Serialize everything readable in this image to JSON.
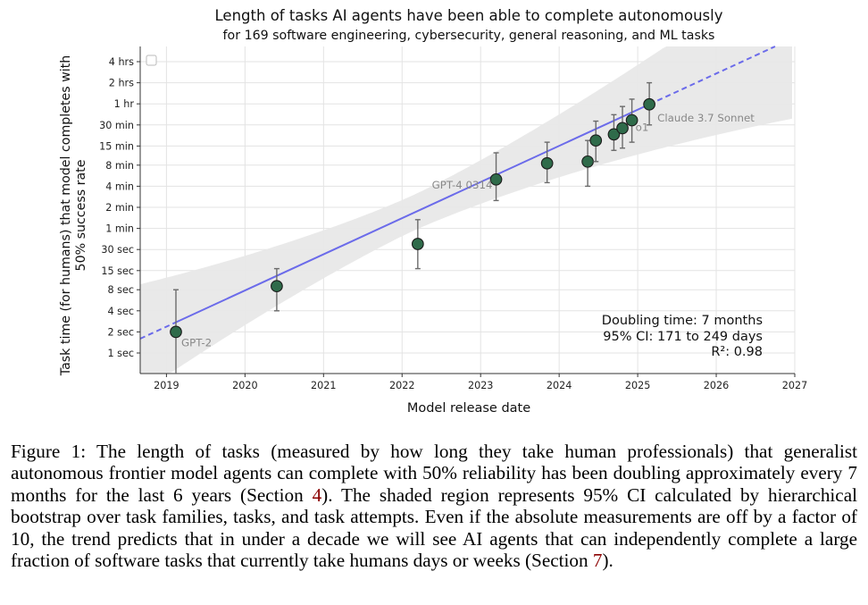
{
  "chart_data": {
    "type": "scatter",
    "title": "Length of tasks AI agents have been able to complete autonomously",
    "subtitle": "for 169 software engineering, cybersecurity, general reasoning, and ML tasks",
    "xlabel": "Model release date",
    "ylabel_line1": "Task time (for humans) that model completes with",
    "ylabel_line2": "50% success rate",
    "xlim": [
      "2018-09-01",
      "2027-01-01"
    ],
    "x_ticks": [
      "2019",
      "2020",
      "2021",
      "2022",
      "2023",
      "2024",
      "2025",
      "2026",
      "2027"
    ],
    "yscale": "log",
    "y_ticks": [
      "1 sec",
      "2 sec",
      "4 sec",
      "8 sec",
      "15 sec",
      "30 sec",
      "1 min",
      "2 min",
      "4 min",
      "8 min",
      "15 min",
      "30 min",
      "1 hr",
      "2 hrs",
      "4 hrs"
    ],
    "grid": true,
    "legend": "top-left",
    "series": [
      {
        "points": [
          {
            "x": "2019-02-14",
            "y": "2 sec",
            "low": "0.4 sec",
            "high": "8 sec",
            "label": "GPT-2"
          },
          {
            "x": "2020-05-28",
            "y": "9 sec",
            "low": "4 sec",
            "high": "16 sec",
            "label": ""
          },
          {
            "x": "2022-03-15",
            "y": "36 sec",
            "low": "16 sec",
            "high": "80 sec",
            "label": ""
          },
          {
            "x": "2023-03-14",
            "y": "5 min",
            "low": "2.5 min",
            "high": "12 min",
            "label": "GPT-4 0314"
          },
          {
            "x": "2023-11-06",
            "y": "8.5 min",
            "low": "4.5 min",
            "high": "17 min",
            "label": ""
          },
          {
            "x": "2024-05-13",
            "y": "9 min",
            "low": "4 min",
            "high": "18 min",
            "label": ""
          },
          {
            "x": "2024-06-20",
            "y": "18 min",
            "low": "9 min",
            "high": "34 min",
            "label": ""
          },
          {
            "x": "2024-09-12",
            "y": "22 min",
            "low": "13 min",
            "high": "42 min",
            "label": ""
          },
          {
            "x": "2024-10-22",
            "y": "27 min",
            "low": "14 min",
            "high": "55 min",
            "label": ""
          },
          {
            "x": "2024-12-05",
            "y": "35 min",
            "low": "17 min",
            "high": "70 min",
            "label": "o1"
          },
          {
            "x": "2025-02-24",
            "y": "59 min",
            "low": "30 min",
            "high": "120 min",
            "label": "Claude 3.7 Sonnet"
          }
        ]
      }
    ],
    "trend_doubling_months": 7,
    "annotation": [
      "Doubling time: 7 months",
      "95% CI: 171 to 249 days",
      "R²: 0.98"
    ],
    "colors": {
      "point_fill": "#2f6b4a",
      "trend_line": "#6b6bea",
      "ci_band": "#e8e8e8",
      "error_bar": "#6b6b6b"
    }
  },
  "caption": {
    "prefix": "Figure 1: The length of tasks (measured by how long they take human professionals) that generalist autonomous frontier model agents can complete with 50% reliability has been doubling approximately every 7 months for the last 6 years (Section ",
    "ref1": "4",
    "middle": ").  The shaded region represents 95% CI calculated by hierarchical bootstrap over task families, tasks, and task attempts. Even if the absolute measurements are off by a factor of 10, the trend predicts that in under a decade we will see AI agents that can independently complete a large fraction of software tasks that currently take humans days or weeks (Section ",
    "ref2": "7",
    "suffix": ")."
  }
}
